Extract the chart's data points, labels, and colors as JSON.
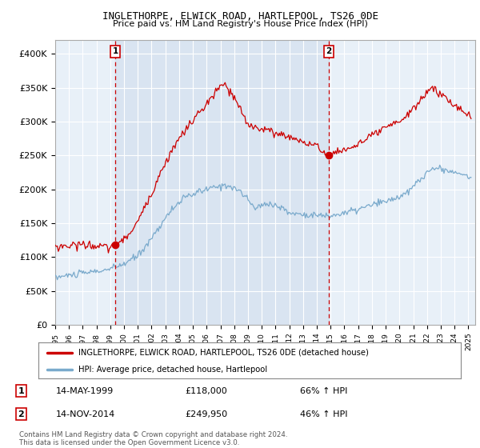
{
  "title": "INGLETHORPE, ELWICK ROAD, HARTLEPOOL, TS26 0DE",
  "subtitle": "Price paid vs. HM Land Registry's House Price Index (HPI)",
  "legend_line1": "INGLETHORPE, ELWICK ROAD, HARTLEPOOL, TS26 0DE (detached house)",
  "legend_line2": "HPI: Average price, detached house, Hartlepool",
  "annotation1_date": "14-MAY-1999",
  "annotation1_price": "£118,000",
  "annotation1_hpi": "66% ↑ HPI",
  "annotation2_date": "14-NOV-2014",
  "annotation2_price": "£249,950",
  "annotation2_hpi": "46% ↑ HPI",
  "footer": "Contains HM Land Registry data © Crown copyright and database right 2024.\nThis data is licensed under the Open Government Licence v3.0.",
  "price_color": "#cc0000",
  "hpi_color": "#7aaacc",
  "annotation_color": "#cc0000",
  "background_color": "#ffffff",
  "plot_bg_color": "#e8f0f8",
  "shade_color": "#ccdaeb",
  "grid_color": "#ffffff",
  "ylim": [
    0,
    420000
  ],
  "yticks": [
    0,
    50000,
    100000,
    150000,
    200000,
    250000,
    300000,
    350000,
    400000
  ],
  "ytick_labels": [
    "£0",
    "£50K",
    "£100K",
    "£150K",
    "£200K",
    "£250K",
    "£300K",
    "£350K",
    "£400K"
  ],
  "ann1_x": 1999.37,
  "ann2_x": 2014.87,
  "ann1_y": 118000,
  "ann2_y": 249950,
  "xmin": 1995.0,
  "xmax": 2025.5
}
